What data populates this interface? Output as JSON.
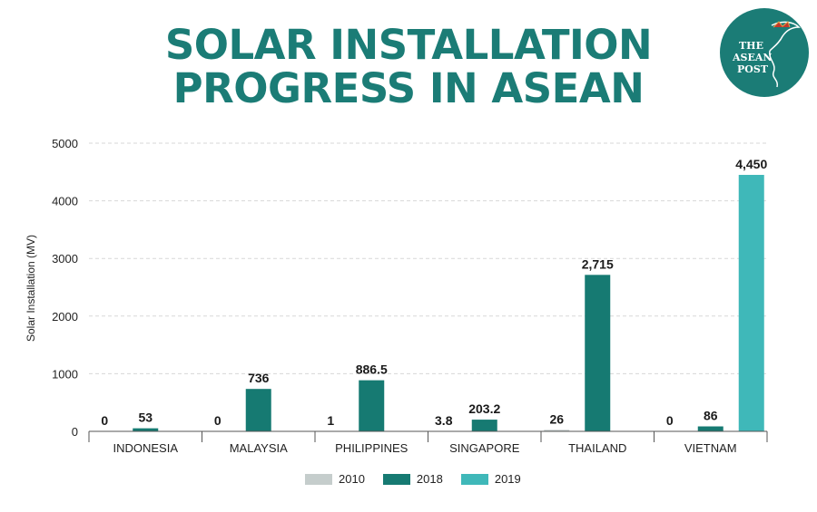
{
  "title_line1": "SOLAR INSTALLATION",
  "title_line2": "PROGRESS IN ASEAN",
  "logo": {
    "line1": "THE",
    "line2": "ASEAN",
    "line3": "POST"
  },
  "colors": {
    "title": "#1b7c76",
    "s2010": "#c5cdcc",
    "s2018": "#167a72",
    "s2019": "#3fb8b9",
    "logo_bg": "#1b7c76"
  },
  "chart_data": {
    "type": "bar",
    "categories": [
      "INDONESIA",
      "MALAYSIA",
      "PHILIPPINES",
      "SINGAPORE",
      "THAILAND",
      "VIETNAM"
    ],
    "series": [
      {
        "name": "2010",
        "values": [
          0,
          0,
          1,
          3.8,
          26,
          0
        ],
        "labels": [
          "0",
          "0",
          "1",
          "3.8",
          "26",
          "0"
        ]
      },
      {
        "name": "2018",
        "values": [
          53,
          736,
          886.5,
          203.2,
          2715,
          86
        ],
        "labels": [
          "53",
          "736",
          "886.5",
          "203.2",
          "2,715",
          "86"
        ]
      },
      {
        "name": "2019",
        "values": [
          null,
          null,
          null,
          null,
          null,
          4450
        ],
        "labels": [
          "",
          "",
          "",
          "",
          "",
          "4,450"
        ]
      }
    ],
    "ylabel": "Solar Installation (MV)",
    "ylim": [
      0,
      5000
    ],
    "yticks": [
      0,
      1000,
      2000,
      3000,
      4000,
      5000
    ],
    "grid": true,
    "legend": "bottom-center"
  }
}
